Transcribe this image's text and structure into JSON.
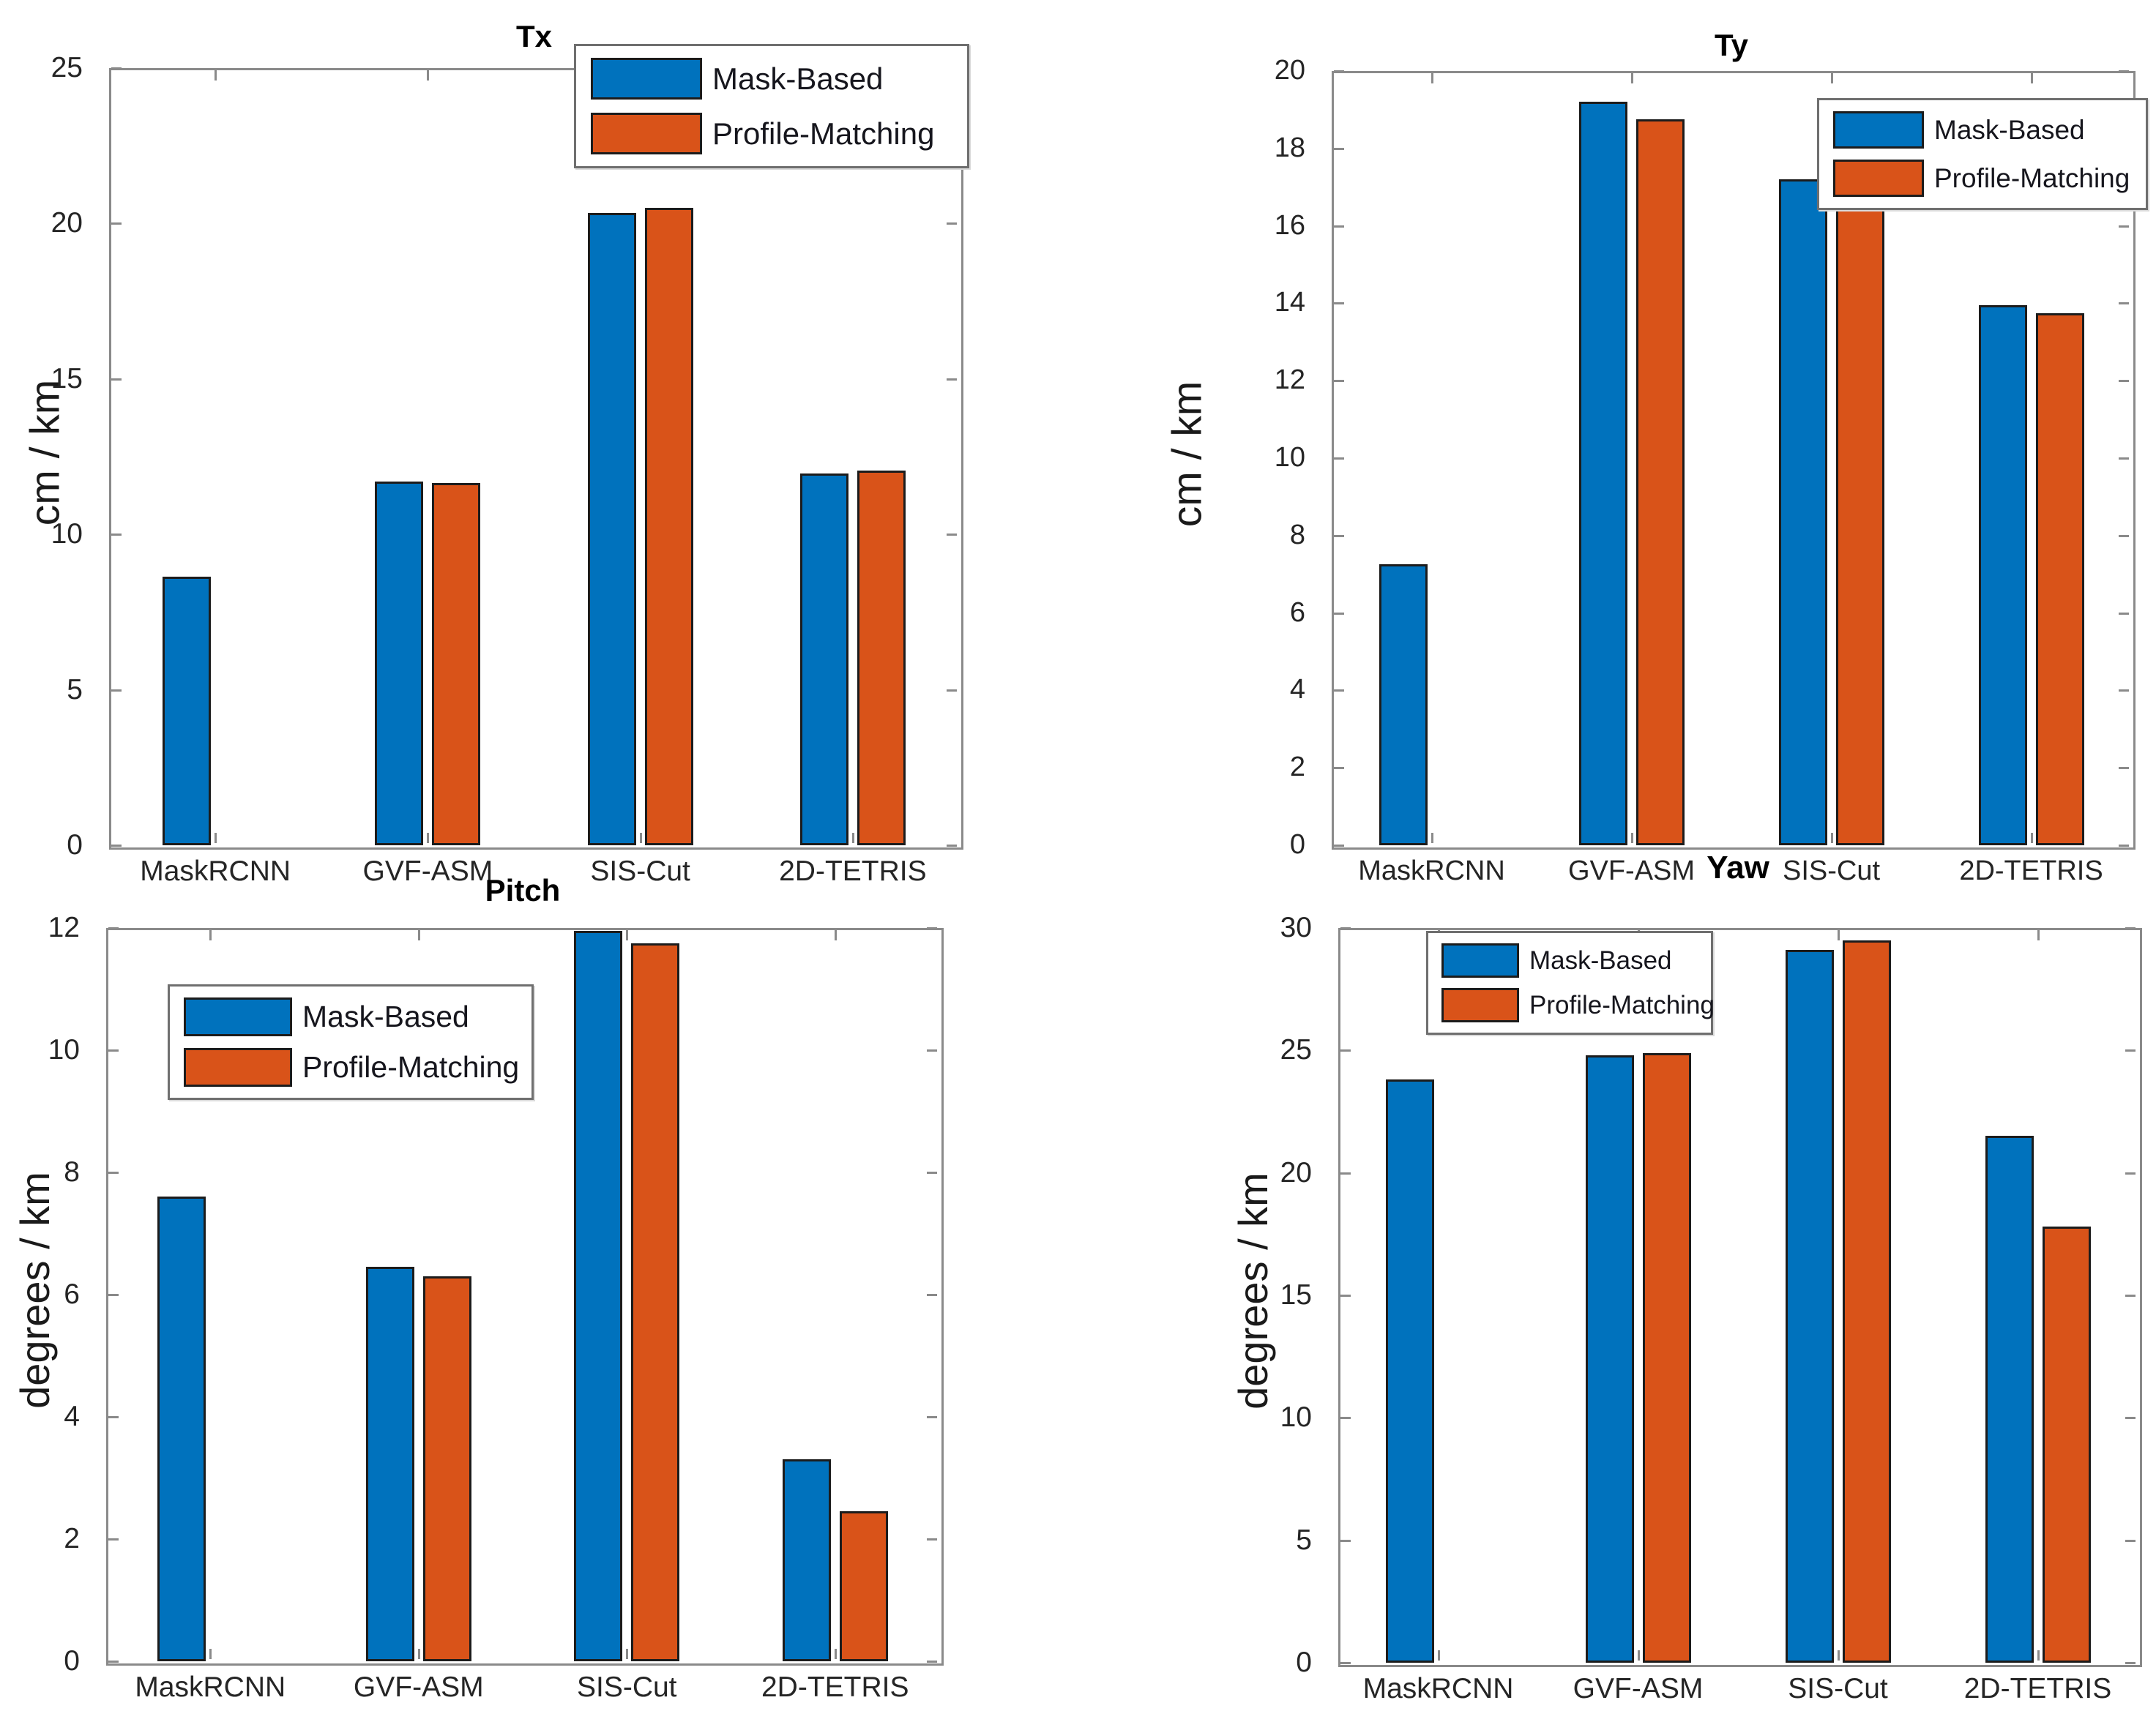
{
  "figure": {
    "background": "#ffffff"
  },
  "palette": {
    "mask_based": "#0072BD",
    "profile_matching": "#D95319",
    "bar_edge": "#1c1c1c",
    "axis": "#8a8a8a",
    "tick_label": "#252525",
    "title": "#000000"
  },
  "legend": {
    "items": [
      {
        "label": "Mask-Based",
        "color": "#0072BD"
      },
      {
        "label": "Profile-Matching",
        "color": "#D95319"
      }
    ]
  },
  "chart_data": [
    {
      "id": "tx",
      "type": "bar",
      "title": "Tx",
      "ylabel": "cm / km",
      "ylim": [
        0,
        25
      ],
      "yticks": [
        0,
        5,
        10,
        15,
        20,
        25
      ],
      "grid": false,
      "legend_position": "top-right",
      "categories": [
        "MaskRCNN",
        "GVF-ASM",
        "SIS-Cut",
        "2D-TETRIS"
      ],
      "series": [
        {
          "name": "Mask-Based",
          "color": "#0072BD",
          "values": [
            8.65,
            11.7,
            20.35,
            11.95
          ]
        },
        {
          "name": "Profile-Matching",
          "color": "#D95319",
          "values": [
            null,
            11.65,
            20.5,
            12.05
          ]
        }
      ]
    },
    {
      "id": "ty",
      "type": "bar",
      "title": "Ty",
      "ylabel": "cm / km",
      "ylim": [
        0,
        20
      ],
      "yticks": [
        0,
        2,
        4,
        6,
        8,
        10,
        12,
        14,
        16,
        18,
        20
      ],
      "grid": false,
      "legend_position": "top-right",
      "categories": [
        "MaskRCNN",
        "GVF-ASM",
        "SIS-Cut",
        "2D-TETRIS"
      ],
      "series": [
        {
          "name": "Mask-Based",
          "color": "#0072BD",
          "values": [
            7.25,
            19.2,
            17.2,
            13.95
          ]
        },
        {
          "name": "Profile-Matching",
          "color": "#D95319",
          "values": [
            null,
            18.75,
            16.95,
            13.75
          ]
        }
      ]
    },
    {
      "id": "pitch",
      "type": "bar",
      "title": "Pitch",
      "ylabel": "degrees / km",
      "ylim": [
        0,
        12
      ],
      "yticks": [
        0,
        2,
        4,
        6,
        8,
        10,
        12
      ],
      "grid": false,
      "legend_position": "top-left-inside",
      "categories": [
        "MaskRCNN",
        "GVF-ASM",
        "SIS-Cut",
        "2D-TETRIS"
      ],
      "series": [
        {
          "name": "Mask-Based",
          "color": "#0072BD",
          "values": [
            7.6,
            6.45,
            11.95,
            3.3
          ]
        },
        {
          "name": "Profile-Matching",
          "color": "#D95319",
          "values": [
            null,
            6.3,
            11.75,
            2.45
          ]
        }
      ]
    },
    {
      "id": "yaw",
      "type": "bar",
      "title": "Yaw",
      "ylabel": "degrees / km",
      "ylim": [
        0,
        30
      ],
      "yticks": [
        0,
        5,
        10,
        15,
        20,
        25,
        30
      ],
      "grid": false,
      "legend_position": "top-left",
      "categories": [
        "MaskRCNN",
        "GVF-ASM",
        "SIS-Cut",
        "2D-TETRIS"
      ],
      "series": [
        {
          "name": "Mask-Based",
          "color": "#0072BD",
          "values": [
            23.8,
            24.8,
            29.1,
            21.5
          ]
        },
        {
          "name": "Profile-Matching",
          "color": "#D95319",
          "values": [
            null,
            24.9,
            29.5,
            17.8
          ]
        }
      ]
    }
  ]
}
